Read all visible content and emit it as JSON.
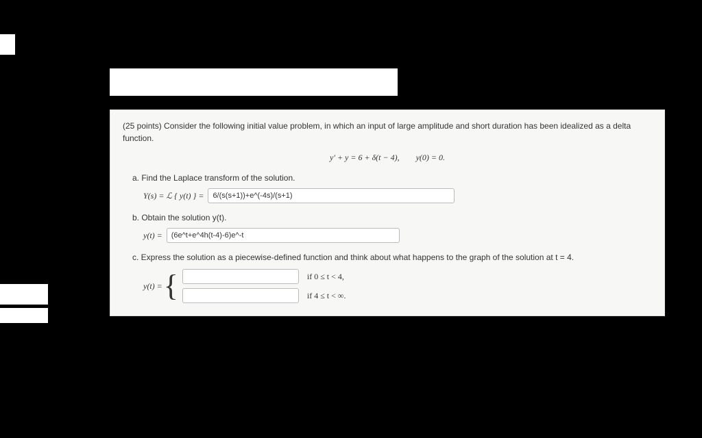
{
  "problem": {
    "intro": "(25 points) Consider the following initial value problem, in which an input of large amplitude and short duration has been idealized as a delta function.",
    "equation": "y′ + y = 6 + δ(t − 4),  y(0) = 0.",
    "part_a": "a. Find the Laplace transform of the solution.",
    "Ys_lhs": "Y(s) = ℒ { y(t) }  =",
    "Ys_value": "6/(s(s+1))+e^(-4s)/(s+1)",
    "part_b": "b. Obtain the solution y(t).",
    "yt_lhs": "y(t) =",
    "yt_value": "(6e^t+e^4h(t-4)-6)e^-t",
    "part_c": "c. Express the solution as a piecewise-defined function and think about what happens to the graph of the solution at t = 4.",
    "piece_lhs": "y(t) =",
    "piece1_value": "",
    "piece1_cond": "if  0 ≤ t < 4,",
    "piece2_value": "",
    "piece2_cond": "if  4 ≤ t < ∞."
  },
  "style": {
    "input_width_a": "360px",
    "input_width_b": "340px",
    "input_width_piece": "170px"
  }
}
